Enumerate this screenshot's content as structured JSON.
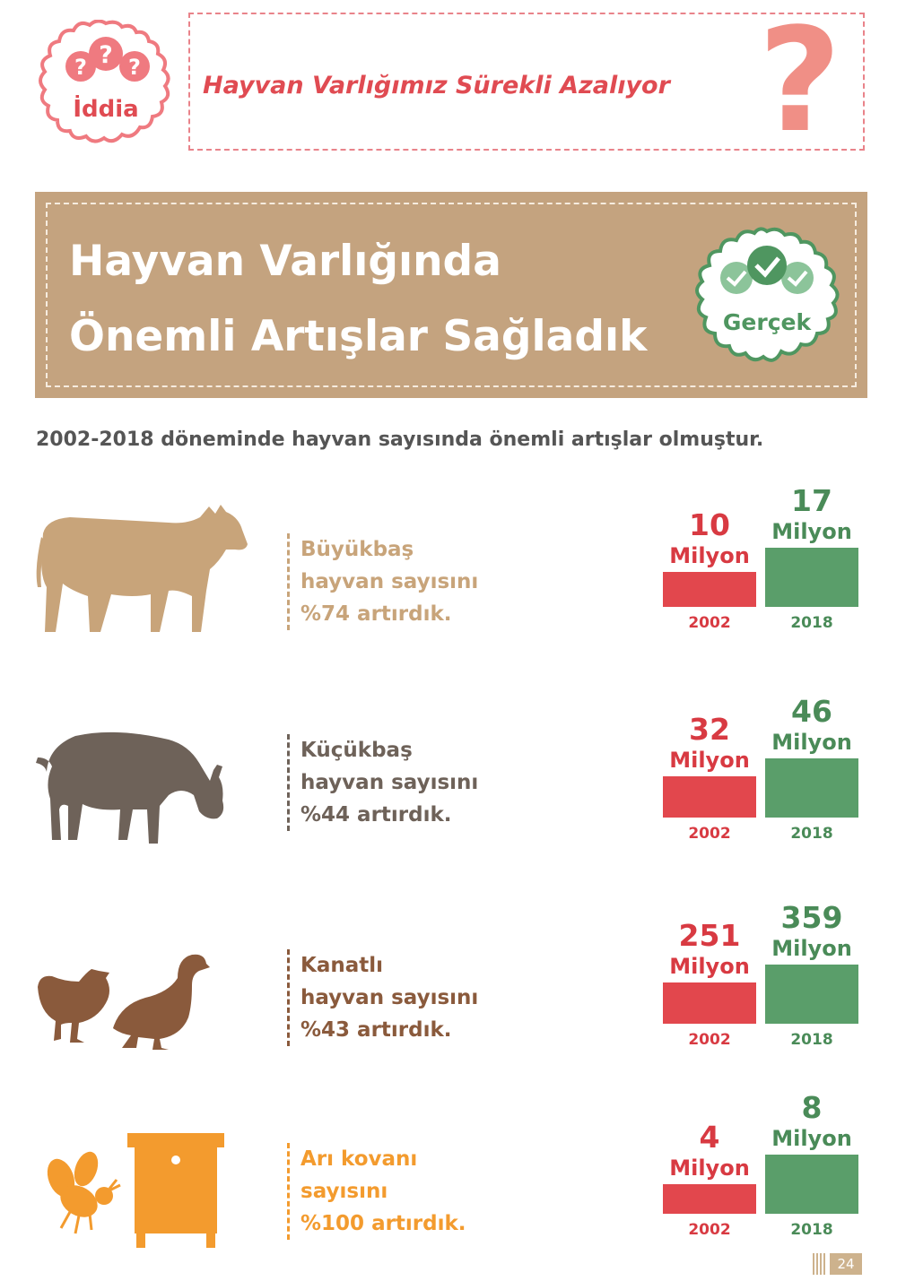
{
  "claim": {
    "badge_label": "İddia",
    "text": "Hayvan Varlığımız Sürekli Azalıyor",
    "question_mark": "?"
  },
  "fact": {
    "headline_line1": "Hayvan Varlığında",
    "headline_line2": "Önemli Artışlar Sağladık",
    "badge_label": "Gerçek"
  },
  "subtitle": "2002-2018 döneminde hayvan sayısında önemli artışlar olmuştur.",
  "rows": [
    {
      "lines": [
        "Büyükbaş",
        "hayvan sayısını",
        "%74 artırdık."
      ],
      "color": "#c8a47a",
      "icon": "cow-icon"
    },
    {
      "lines": [
        "Küçükbaş",
        "hayvan sayısını",
        "%44 artırdık."
      ],
      "color": "#6e6259",
      "icon": "goat-icon"
    },
    {
      "lines": [
        "Kanatlı",
        "hayvan sayısını",
        "%43 artırdık."
      ],
      "color": "#8a5a3c",
      "icon": "poultry-icon"
    },
    {
      "lines": [
        "Arı kovanı",
        "sayısını",
        "%100 artırdık."
      ],
      "color": "#f39b2e",
      "icon": "beehive-icon"
    }
  ],
  "chart_data": [
    {
      "type": "bar",
      "categories": [
        "2002",
        "2018"
      ],
      "values": [
        10,
        17
      ],
      "value_labels": [
        "10",
        "17"
      ],
      "unit": "Milyon",
      "colors": [
        "#e2474d",
        "#5a9e6a"
      ]
    },
    {
      "type": "bar",
      "categories": [
        "2002",
        "2018"
      ],
      "values": [
        32,
        46
      ],
      "value_labels": [
        "32",
        "46"
      ],
      "unit": "Milyon",
      "colors": [
        "#e2474d",
        "#5a9e6a"
      ]
    },
    {
      "type": "bar",
      "categories": [
        "2002",
        "2018"
      ],
      "values": [
        251,
        359
      ],
      "value_labels": [
        "251",
        "359"
      ],
      "unit": "Milyon",
      "colors": [
        "#e2474d",
        "#5a9e6a"
      ]
    },
    {
      "type": "bar",
      "categories": [
        "2002",
        "2018"
      ],
      "values": [
        4,
        8
      ],
      "value_labels": [
        "4",
        "8"
      ],
      "unit": "Milyon",
      "colors": [
        "#e2474d",
        "#5a9e6a"
      ]
    }
  ],
  "page_number": "24"
}
